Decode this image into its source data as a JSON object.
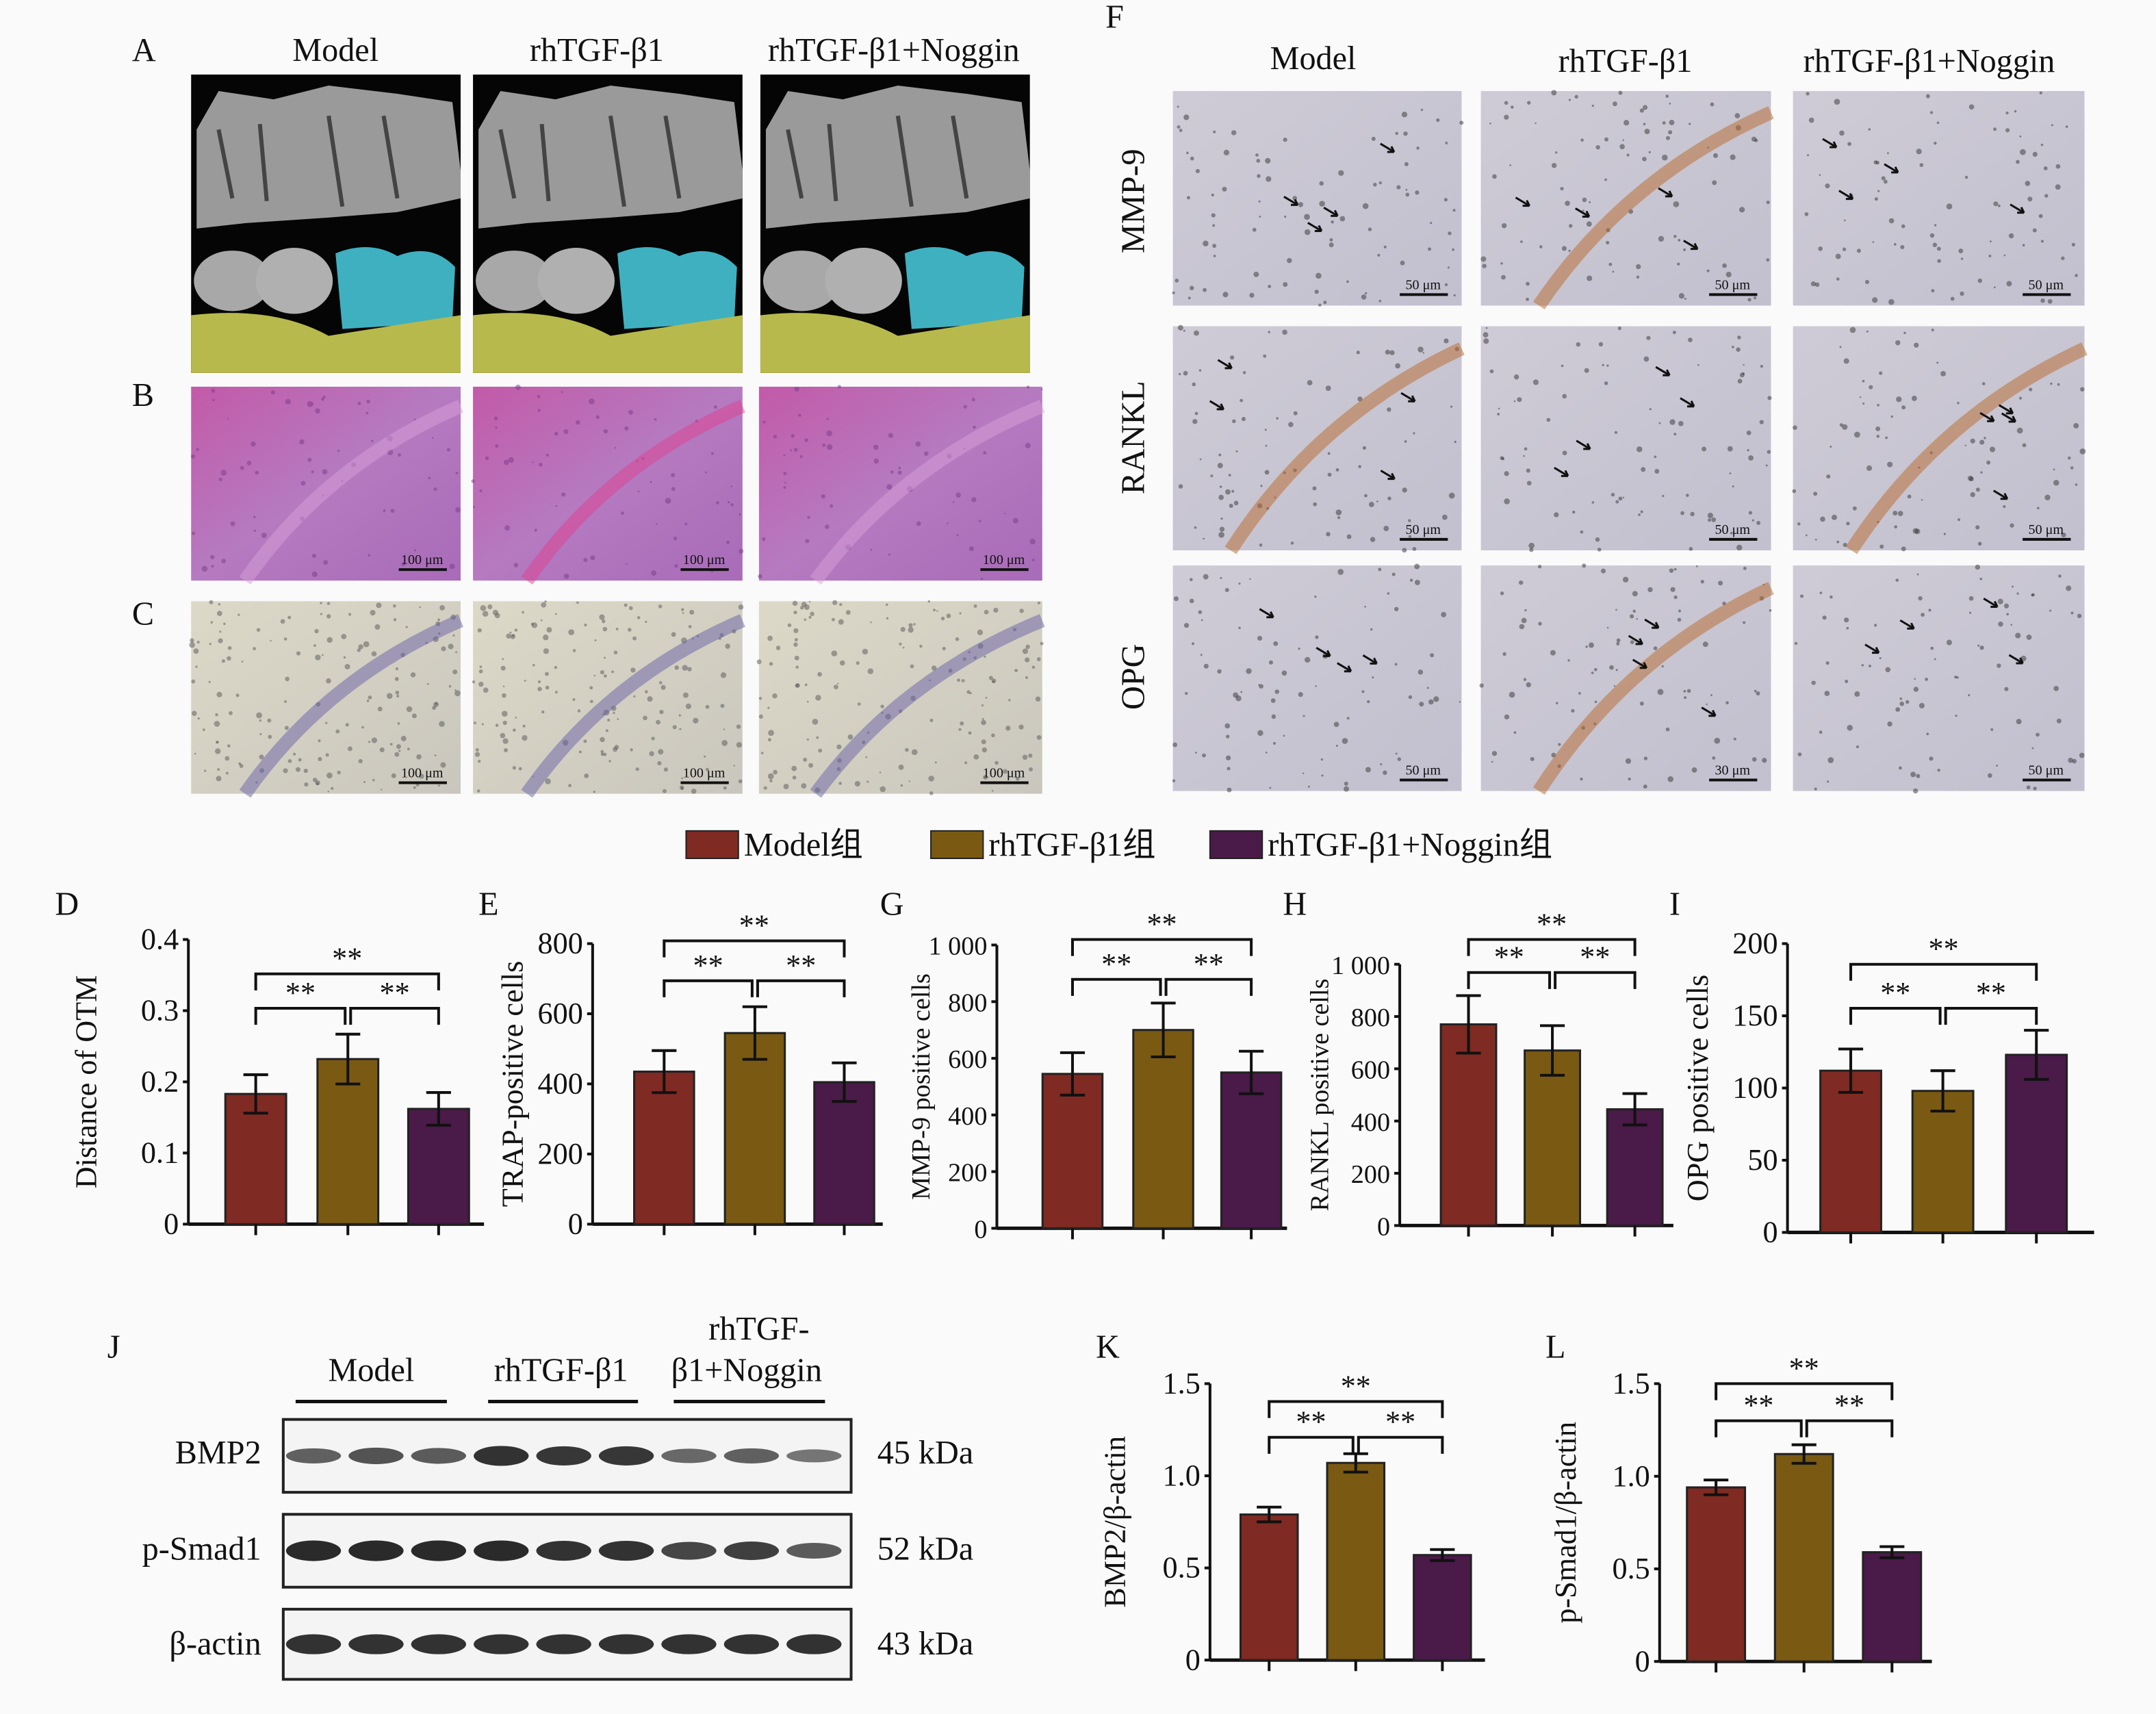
{
  "panel_letters": {
    "A": "A",
    "B": "B",
    "C": "C",
    "D": "D",
    "E": "E",
    "F": "F",
    "G": "G",
    "H": "H",
    "I": "I",
    "J": "J",
    "K": "K",
    "L": "L"
  },
  "groups": [
    "Model",
    "rhTGF-β1",
    "rhTGF-β1+Noggin"
  ],
  "colors": {
    "model": "#7f2a22",
    "rhtgf": "#7a5a12",
    "noggin": "#4a1a48"
  },
  "histology": {
    "scale_bar_B": "100 μm",
    "scale_bar_C": "100 μm",
    "F_rows": [
      "MMP-9",
      "RANKL",
      "OPG"
    ],
    "F_scale_bars": [
      [
        "50 μm",
        "50 μm",
        "50 μm"
      ],
      [
        "50 μm",
        "50 μm",
        "50 μm"
      ],
      [
        "50 μm",
        "30 μm",
        "50 μm"
      ]
    ]
  },
  "legend": [
    "Model组",
    "rhTGF-β1组",
    "rhTGF-β1+Noggin组"
  ],
  "significance": "**",
  "western": {
    "headers": [
      "Model",
      "rhTGF-β1",
      "rhTGF-",
      "β1+Noggin"
    ],
    "rows": [
      {
        "name": "BMP2",
        "kda": "45 kDa"
      },
      {
        "name": "p-Smad1",
        "kda": "52 kDa"
      },
      {
        "name": "β-actin",
        "kda": "43 kDa"
      }
    ]
  },
  "chart_data": [
    {
      "id": "D",
      "type": "bar",
      "ylabel": "Distance of OTM",
      "ylim": [
        0,
        0.4
      ],
      "yticks": [
        "0",
        "0.1",
        "0.2",
        "0.3",
        "0.4"
      ],
      "tickvals": [
        0,
        0.1,
        0.2,
        0.3,
        0.4
      ],
      "categories": [
        "Model",
        "rhTGF-β1",
        "rhTGF-β1+Noggin"
      ],
      "values": [
        0.183,
        0.232,
        0.162
      ],
      "errors": [
        0.027,
        0.035,
        0.023
      ]
    },
    {
      "id": "E",
      "type": "bar",
      "ylabel": "TRAP-positive cells",
      "ylim": [
        0,
        800
      ],
      "yticks": [
        "0",
        "200",
        "400",
        "600",
        "800"
      ],
      "tickvals": [
        0,
        200,
        400,
        600,
        800
      ],
      "categories": [
        "Model",
        "rhTGF-β1",
        "rhTGF-β1+Noggin"
      ],
      "values": [
        435,
        545,
        405
      ],
      "errors": [
        60,
        75,
        55
      ]
    },
    {
      "id": "G",
      "type": "bar",
      "ylabel": "MMP-9 positive cells",
      "ylim": [
        0,
        1000
      ],
      "yticks": [
        "0",
        "200",
        "400",
        "600",
        "800",
        "1 000"
      ],
      "tickvals": [
        0,
        200,
        400,
        600,
        800,
        1000
      ],
      "categories": [
        "Model",
        "rhTGF-β1",
        "rhTGF-β1+Noggin"
      ],
      "values": [
        545,
        700,
        550
      ],
      "errors": [
        75,
        95,
        75
      ]
    },
    {
      "id": "H",
      "type": "bar",
      "ylabel": "RANKL positive cells",
      "ylim": [
        0,
        1000
      ],
      "yticks": [
        "0",
        "200",
        "400",
        "600",
        "800",
        "1 000"
      ],
      "tickvals": [
        0,
        200,
        400,
        600,
        800,
        1000
      ],
      "categories": [
        "Model",
        "rhTGF-β1",
        "rhTGF-β1+Noggin"
      ],
      "values": [
        770,
        670,
        445
      ],
      "errors": [
        110,
        95,
        60
      ]
    },
    {
      "id": "I",
      "type": "bar",
      "ylabel": "OPG positive cells",
      "ylim": [
        0,
        200
      ],
      "yticks": [
        "0",
        "50",
        "100",
        "150",
        "200"
      ],
      "tickvals": [
        0,
        50,
        100,
        150,
        200
      ],
      "categories": [
        "Model",
        "rhTGF-β1",
        "rhTGF-β1+Noggin"
      ],
      "values": [
        112,
        98,
        123
      ],
      "errors": [
        15,
        14,
        17
      ]
    },
    {
      "id": "K",
      "type": "bar",
      "ylabel": "BMP2/β-actin",
      "ylim": [
        0,
        1.5
      ],
      "yticks": [
        "0",
        "0.5",
        "1.0",
        "1.5"
      ],
      "tickvals": [
        0,
        0.5,
        1.0,
        1.5
      ],
      "categories": [
        "Model",
        "rhTGF-β1",
        "rhTGF-β1+Noggin"
      ],
      "values": [
        0.79,
        1.07,
        0.57
      ],
      "errors": [
        0.04,
        0.05,
        0.03
      ]
    },
    {
      "id": "L",
      "type": "bar",
      "ylabel": "p-Smad1/β-actin",
      "ylim": [
        0,
        1.5
      ],
      "yticks": [
        "0",
        "0.5",
        "1.0",
        "1.5"
      ],
      "tickvals": [
        0,
        0.5,
        1.0,
        1.5
      ],
      "categories": [
        "Model",
        "rhTGF-β1",
        "rhTGF-β1+Noggin"
      ],
      "values": [
        0.94,
        1.12,
        0.59
      ],
      "errors": [
        0.04,
        0.05,
        0.03
      ]
    }
  ]
}
